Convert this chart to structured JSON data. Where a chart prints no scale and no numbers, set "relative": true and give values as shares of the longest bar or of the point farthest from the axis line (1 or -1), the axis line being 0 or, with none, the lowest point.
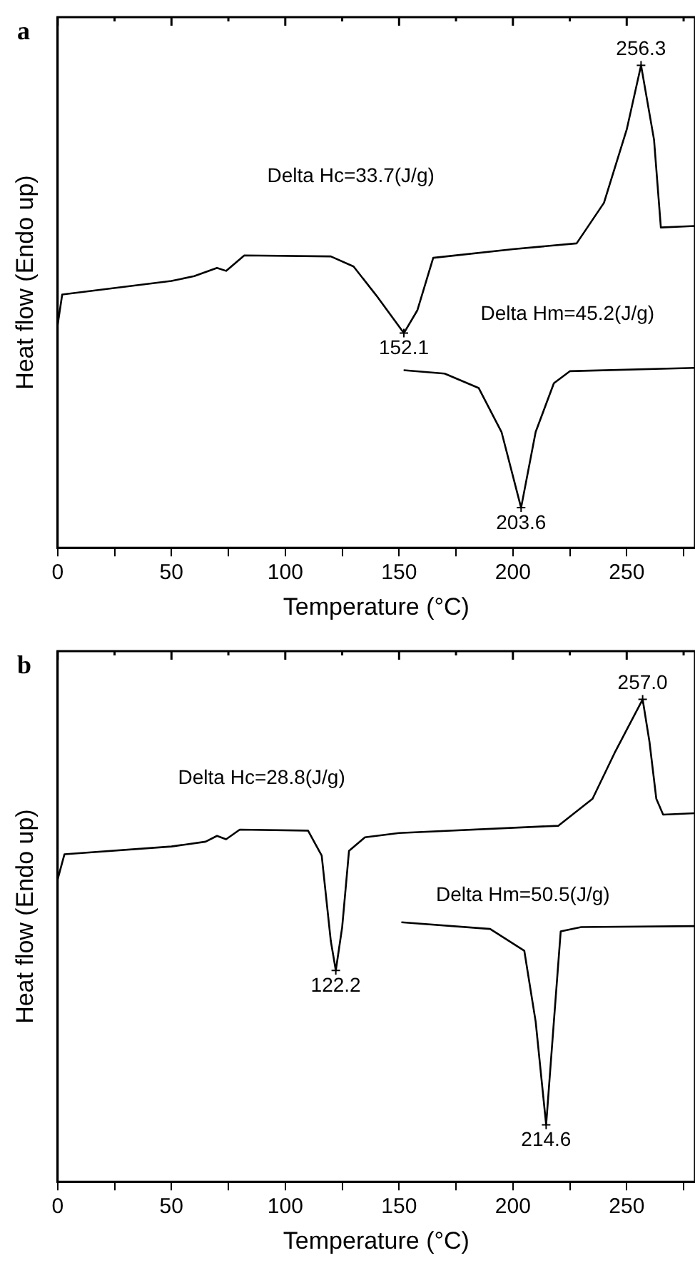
{
  "chart_data": [
    {
      "type": "line",
      "title": "a",
      "xlabel": "Temperature (°C)",
      "ylabel": "Heat flow (Endo up)",
      "relative": true,
      "legend": false,
      "grid": false,
      "tick_labels": "x",
      "xlim": [
        0,
        280
      ],
      "xticks": [
        0,
        {
          "value": 25,
          "label": null
        },
        50,
        {
          "value": 75,
          "label": null
        },
        100,
        {
          "value": 125,
          "label": null
        },
        150,
        {
          "value": 175,
          "label": null
        },
        200,
        {
          "value": 225,
          "label": null
        },
        250,
        {
          "value": 275,
          "label": null
        }
      ],
      "series": [
        {
          "color": "#000000",
          "x": [
            0,
            2,
            50,
            60,
            70,
            74,
            82,
            120,
            130,
            140,
            152.1,
            158,
            165,
            200,
            228,
            240,
            250,
            256.3,
            262,
            265,
            280
          ],
          "values": [
            0.462,
            0.525,
            0.553,
            0.563,
            0.58,
            0.574,
            0.606,
            0.604,
            0.583,
            0.523,
            0.445,
            0.492,
            0.601,
            0.619,
            0.631,
            0.715,
            0.867,
            1,
            0.846,
            0.664,
            0.667
          ]
        },
        {
          "color": "#000000",
          "x": [
            152,
            170,
            185,
            195,
            203.6,
            210,
            218,
            225,
            280
          ],
          "values": [
            0.368,
            0.361,
            0.331,
            0.24,
            0.083,
            0.24,
            0.341,
            0.366,
            0.373
          ]
        }
      ],
      "annotations": [
        "Delta Hc=33.7(J/g)",
        "Delta Hm=45.2(J/g)",
        {
          "text": "256.3",
          "x": 256.3,
          "y": 1
        },
        {
          "text": "152.1",
          "x": 152.1,
          "y": 0.445
        },
        {
          "text": "203.6",
          "x": 203.6,
          "y": 0.083
        }
      ]
    },
    {
      "type": "line",
      "title": "b",
      "xlabel": "Temperature (°C)",
      "ylabel": "Heat flow (Endo up)",
      "relative": true,
      "legend": false,
      "grid": false,
      "tick_labels": "x",
      "xlim": [
        0,
        280
      ],
      "xticks": [
        0,
        {
          "value": 25,
          "label": null
        },
        50,
        {
          "value": 75,
          "label": null
        },
        100,
        {
          "value": 125,
          "label": null
        },
        150,
        {
          "value": 175,
          "label": null
        },
        200,
        {
          "value": 225,
          "label": null
        },
        250,
        {
          "value": 275,
          "label": null
        }
      ],
      "series": [
        {
          "color": "#000000",
          "x": [
            0,
            3,
            50,
            65,
            70,
            74,
            80,
            110,
            116,
            120,
            122.2,
            125,
            128,
            135,
            150,
            220,
            235,
            245,
            257,
            260,
            263,
            266,
            280
          ],
          "values": [
            0.627,
            0.679,
            0.695,
            0.705,
            0.717,
            0.71,
            0.73,
            0.728,
            0.676,
            0.499,
            0.438,
            0.528,
            0.686,
            0.714,
            0.723,
            0.738,
            0.794,
            0.892,
            1,
            0.912,
            0.794,
            0.761,
            0.764
          ]
        },
        {
          "color": "#000000",
          "x": [
            151,
            190,
            205,
            210,
            214.6,
            218,
            221,
            230,
            280
          ],
          "values": [
            0.538,
            0.524,
            0.479,
            0.332,
            0.118,
            0.332,
            0.519,
            0.528,
            0.53
          ]
        }
      ],
      "annotations": [
        "Delta Hc=28.8(J/g)",
        "Delta Hm=50.5(J/g)",
        {
          "text": "257.0",
          "x": 257,
          "y": 1
        },
        {
          "text": "122.2",
          "x": 122.2,
          "y": 0.438
        },
        {
          "text": "214.6",
          "x": 214.6,
          "y": 0.118
        }
      ]
    }
  ]
}
